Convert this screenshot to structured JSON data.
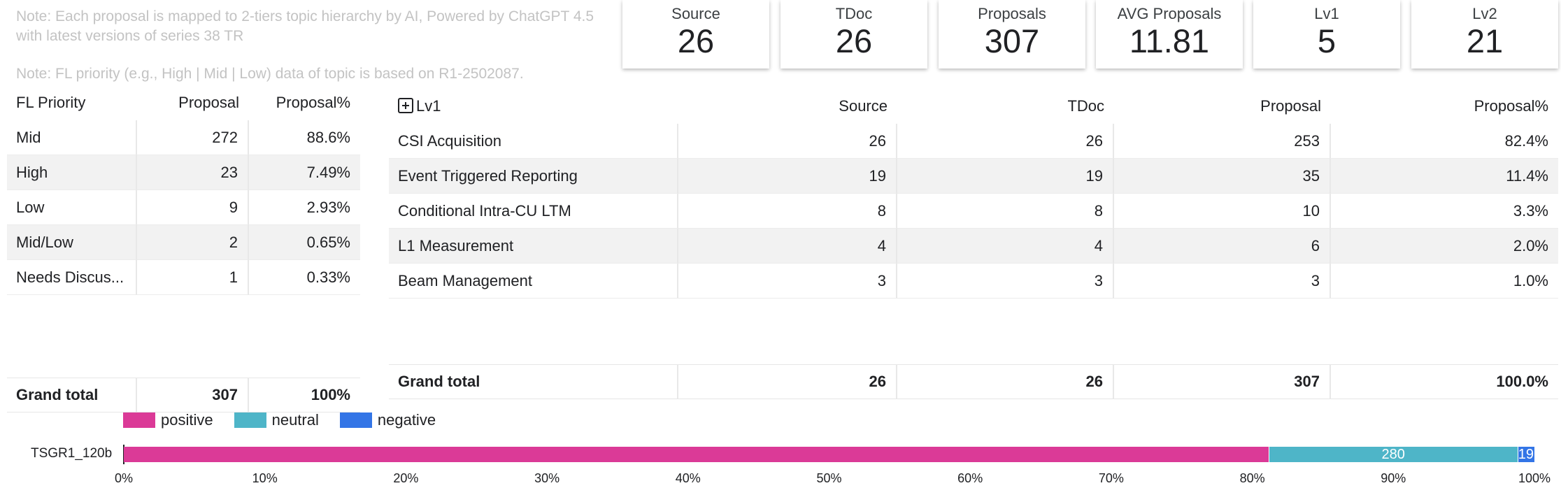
{
  "notes": {
    "hierarchy": "Note: Each proposal is mapped to 2-tiers topic hierarchy by AI, Powered by ChatGPT 4.5 with latest versions of series 38 TR",
    "priority": "Note: FL priority (e.g., High | Mid | Low) data of topic is based on R1-2502087."
  },
  "kpis": [
    {
      "label": "Source",
      "value": "26"
    },
    {
      "label": "TDoc",
      "value": "26"
    },
    {
      "label": "Proposals",
      "value": "307"
    },
    {
      "label": "AVG Proposals",
      "value": "11.81"
    },
    {
      "label": "Lv1",
      "value": "5"
    },
    {
      "label": "Lv2",
      "value": "21"
    }
  ],
  "fl_priority_table": {
    "headers": [
      "FL Priority",
      "Proposal",
      "Proposal%"
    ],
    "rows": [
      [
        "Mid",
        "272",
        "88.6%"
      ],
      [
        "High",
        "23",
        "7.49%"
      ],
      [
        "Low",
        "9",
        "2.93%"
      ],
      [
        "Mid/Low",
        "2",
        "0.65%"
      ],
      [
        "Needs Discus...",
        "1",
        "0.33%"
      ]
    ],
    "total": [
      "Grand total",
      "307",
      "100%"
    ]
  },
  "lv1_table": {
    "headers": [
      "Lv1",
      "Source",
      "TDoc",
      "Proposal",
      "Proposal%"
    ],
    "rows": [
      [
        "CSI Acquisition",
        "26",
        "26",
        "253",
        "82.4%"
      ],
      [
        "Event Triggered Reporting",
        "19",
        "19",
        "35",
        "11.4%"
      ],
      [
        "Conditional Intra-CU LTM",
        "8",
        "8",
        "10",
        "3.3%"
      ],
      [
        "L1 Measurement",
        "4",
        "4",
        "6",
        "2.0%"
      ],
      [
        "Beam Management",
        "3",
        "3",
        "3",
        "1.0%"
      ]
    ],
    "total": [
      "Grand total",
      "26",
      "26",
      "307",
      "100.0%"
    ]
  },
  "chart_data": {
    "type": "bar",
    "orientation": "horizontal",
    "stacked": "percent",
    "categories": [
      "TSGR1_120b"
    ],
    "series": [
      {
        "name": "positive",
        "values": [
          1290
        ],
        "color": "#db3a97"
      },
      {
        "name": "neutral",
        "values": [
          280
        ],
        "color": "#4eb5c8"
      },
      {
        "name": "negative",
        "values": [
          19
        ],
        "color": "#3375e6"
      }
    ],
    "data_labels": [
      "",
      "280",
      "19"
    ],
    "xlim": [
      0,
      100
    ],
    "x_ticks": [
      "0%",
      "10%",
      "20%",
      "30%",
      "40%",
      "50%",
      "60%",
      "70%",
      "80%",
      "90%",
      "100%"
    ],
    "legend": "top-left",
    "grid": false
  }
}
